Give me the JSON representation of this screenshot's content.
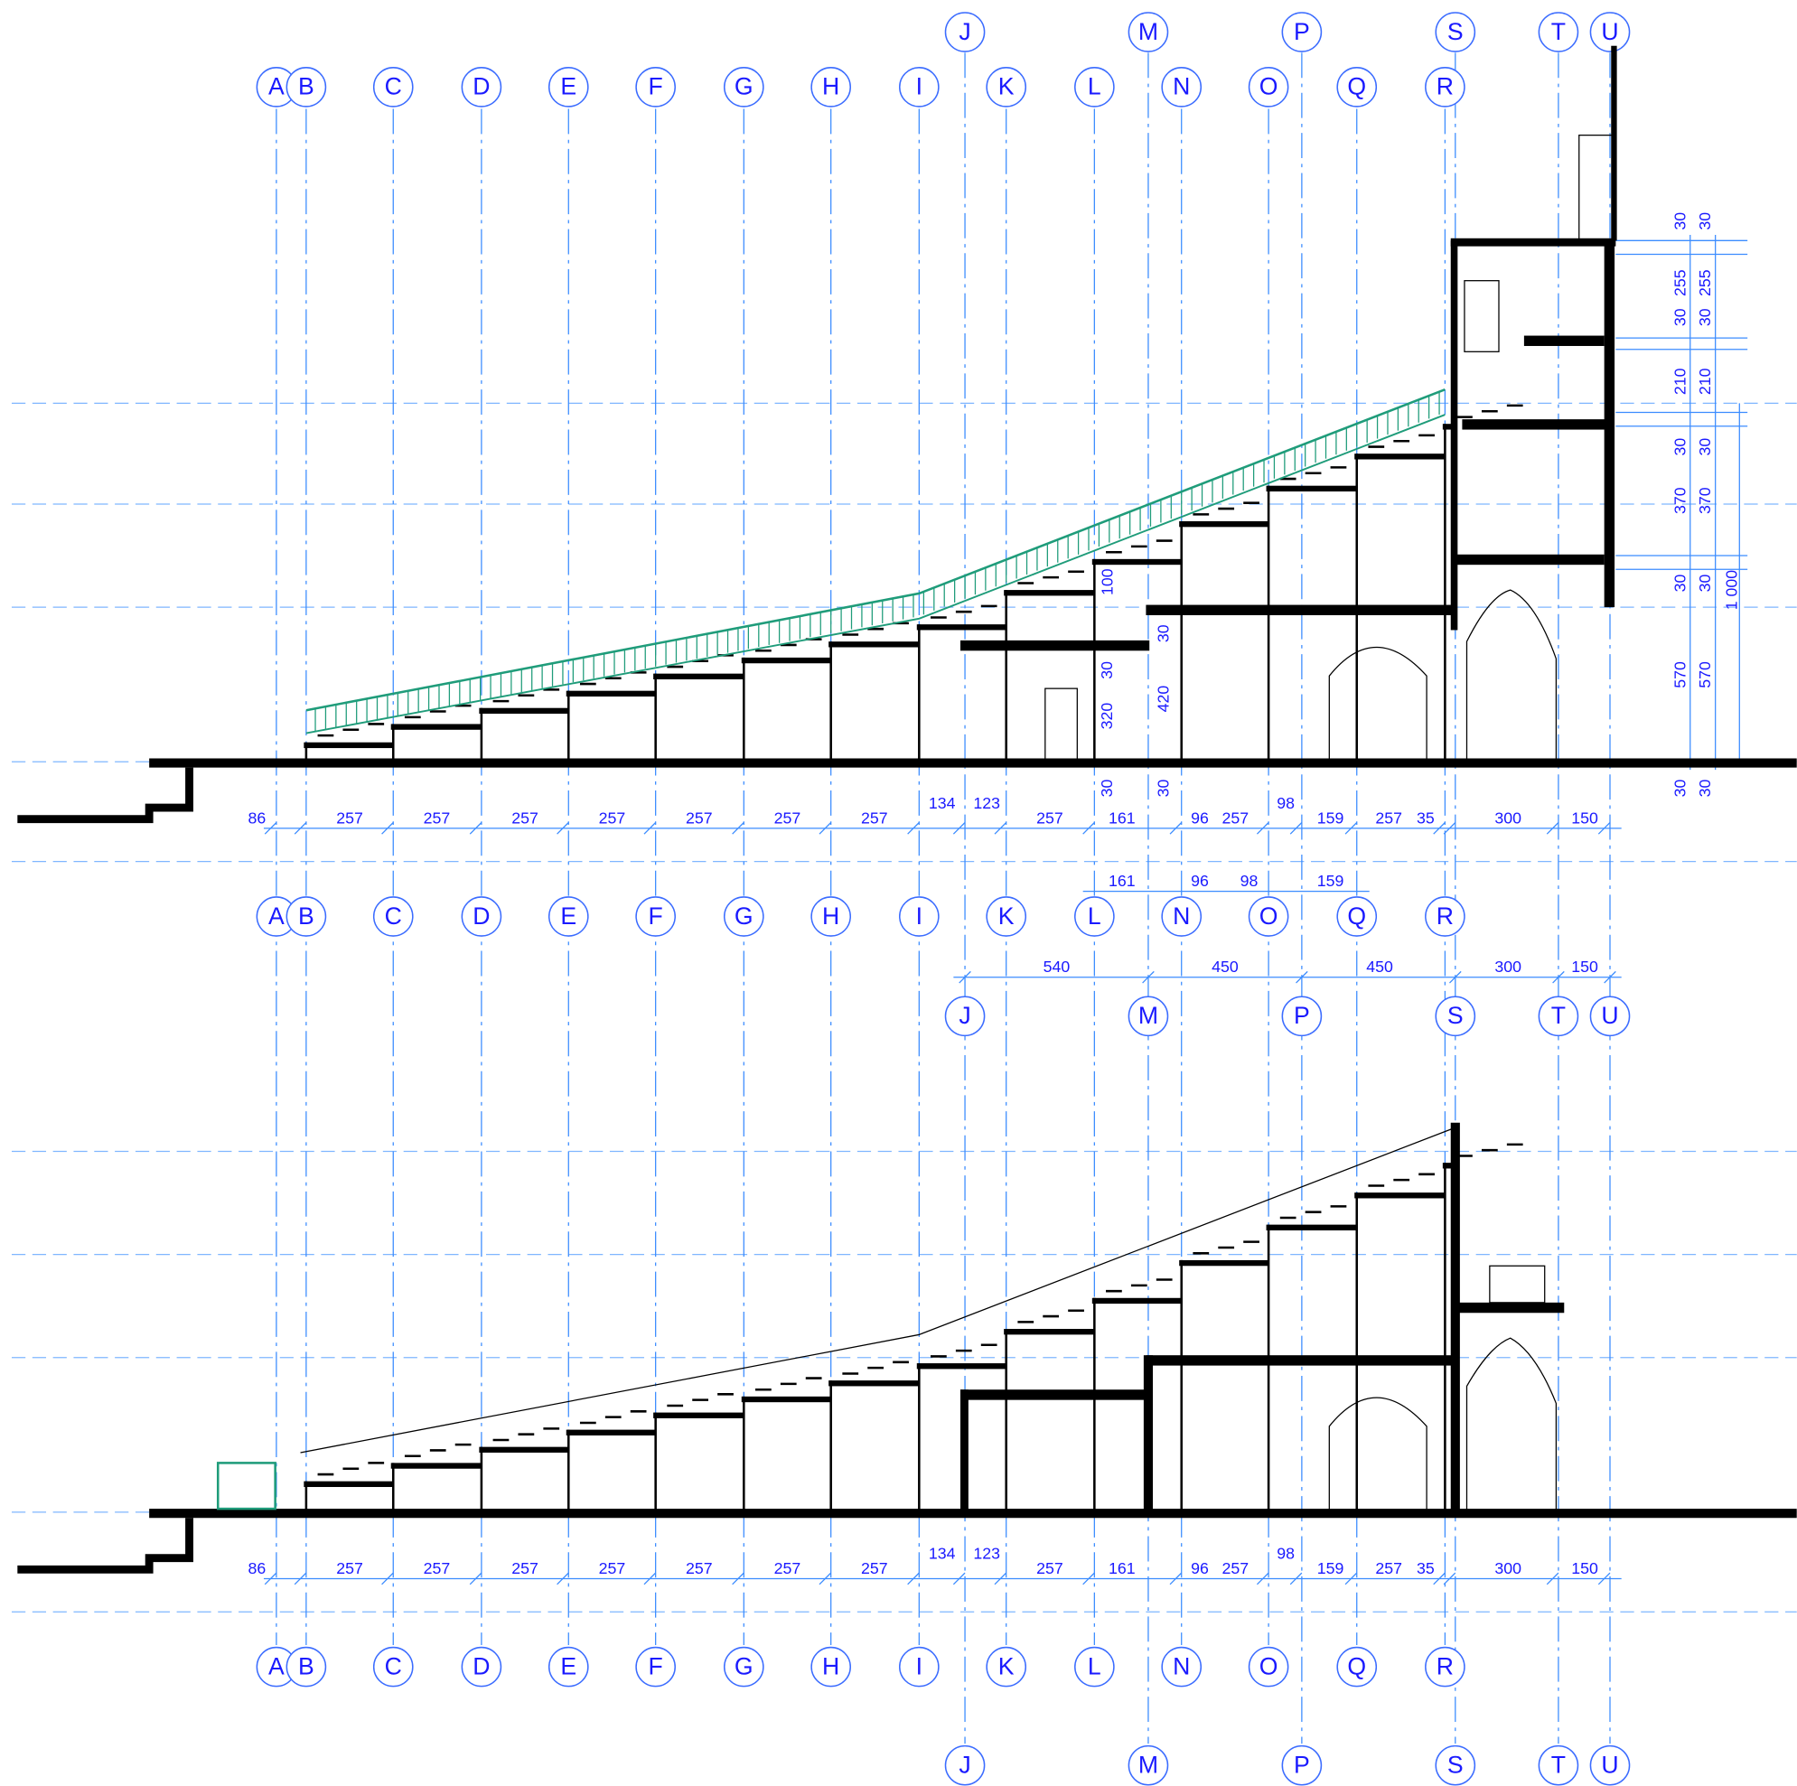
{
  "axes": [
    "A",
    "B",
    "C",
    "D",
    "E",
    "F",
    "G",
    "H",
    "I",
    "J",
    "K",
    "L",
    "M",
    "N",
    "O",
    "P",
    "Q",
    "R",
    "S",
    "T",
    "U"
  ],
  "dims_main": [
    "86",
    "257",
    "257",
    "257",
    "257",
    "257",
    "257",
    "257",
    "134",
    "123",
    "257",
    "161",
    "96",
    "257",
    "98",
    "159",
    "257",
    "35",
    "300",
    "150"
  ],
  "dims_secondary": [
    "161",
    "96",
    "98",
    "159"
  ],
  "dims_overall": [
    "540",
    "450",
    "450",
    "300",
    "150"
  ],
  "dims_right": [
    "30",
    "255",
    "30",
    "210",
    "30",
    "370",
    "30",
    "570",
    "30"
  ],
  "dim_total": "1 000",
  "dims_levels": [
    "100",
    "30",
    "320",
    "30",
    "30",
    "420",
    "30"
  ]
}
